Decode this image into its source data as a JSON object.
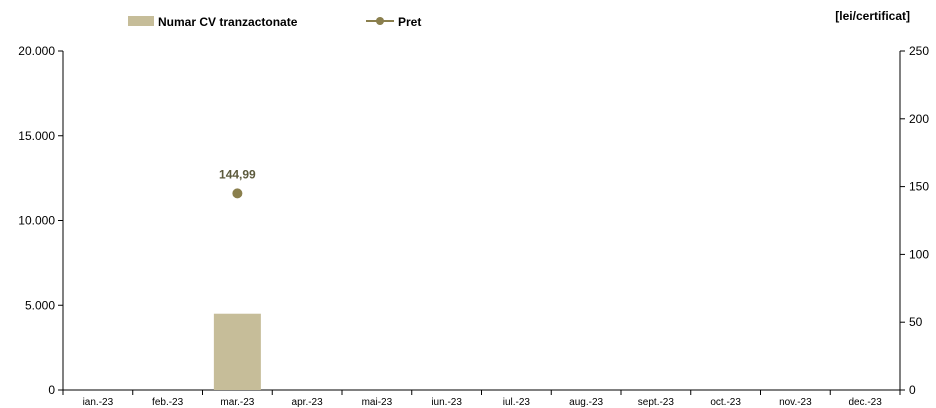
{
  "chart_data": {
    "type": "bar",
    "categories": [
      "ian.-23",
      "feb.-23",
      "mar.-23",
      "apr.-23",
      "mai-23",
      "iun.-23",
      "iul.-23",
      "aug.-23",
      "sept.-23",
      "oct.-23",
      "nov.-23",
      "dec.-23"
    ],
    "series": [
      {
        "name": "Numar CV tranzactonate",
        "type": "bar",
        "axis": "left",
        "values": [
          null,
          null,
          4500,
          null,
          null,
          null,
          null,
          null,
          null,
          null,
          null,
          null
        ],
        "color": "#c6bd99"
      },
      {
        "name": "Pret",
        "type": "line",
        "axis": "right",
        "values": [
          null,
          null,
          144.99,
          null,
          null,
          null,
          null,
          null,
          null,
          null,
          null,
          null
        ],
        "labels": [
          null,
          null,
          "144,99",
          null,
          null,
          null,
          null,
          null,
          null,
          null,
          null,
          null
        ],
        "color": "#8a7f4d"
      }
    ],
    "y_left": {
      "range": [
        0,
        20000
      ],
      "ticks": [
        0,
        5000,
        10000,
        15000,
        20000
      ],
      "tick_labels": [
        "0",
        "5.000",
        "10.000",
        "15.000",
        "20.000"
      ]
    },
    "y_right": {
      "range": [
        0,
        250
      ],
      "ticks": [
        0,
        50,
        100,
        150,
        200,
        250
      ],
      "tick_labels": [
        "0",
        "50",
        "100",
        "150",
        "200",
        "250"
      ],
      "unit_label": "[lei/certificat]"
    },
    "legend": {
      "position": "top"
    },
    "grid": false
  }
}
